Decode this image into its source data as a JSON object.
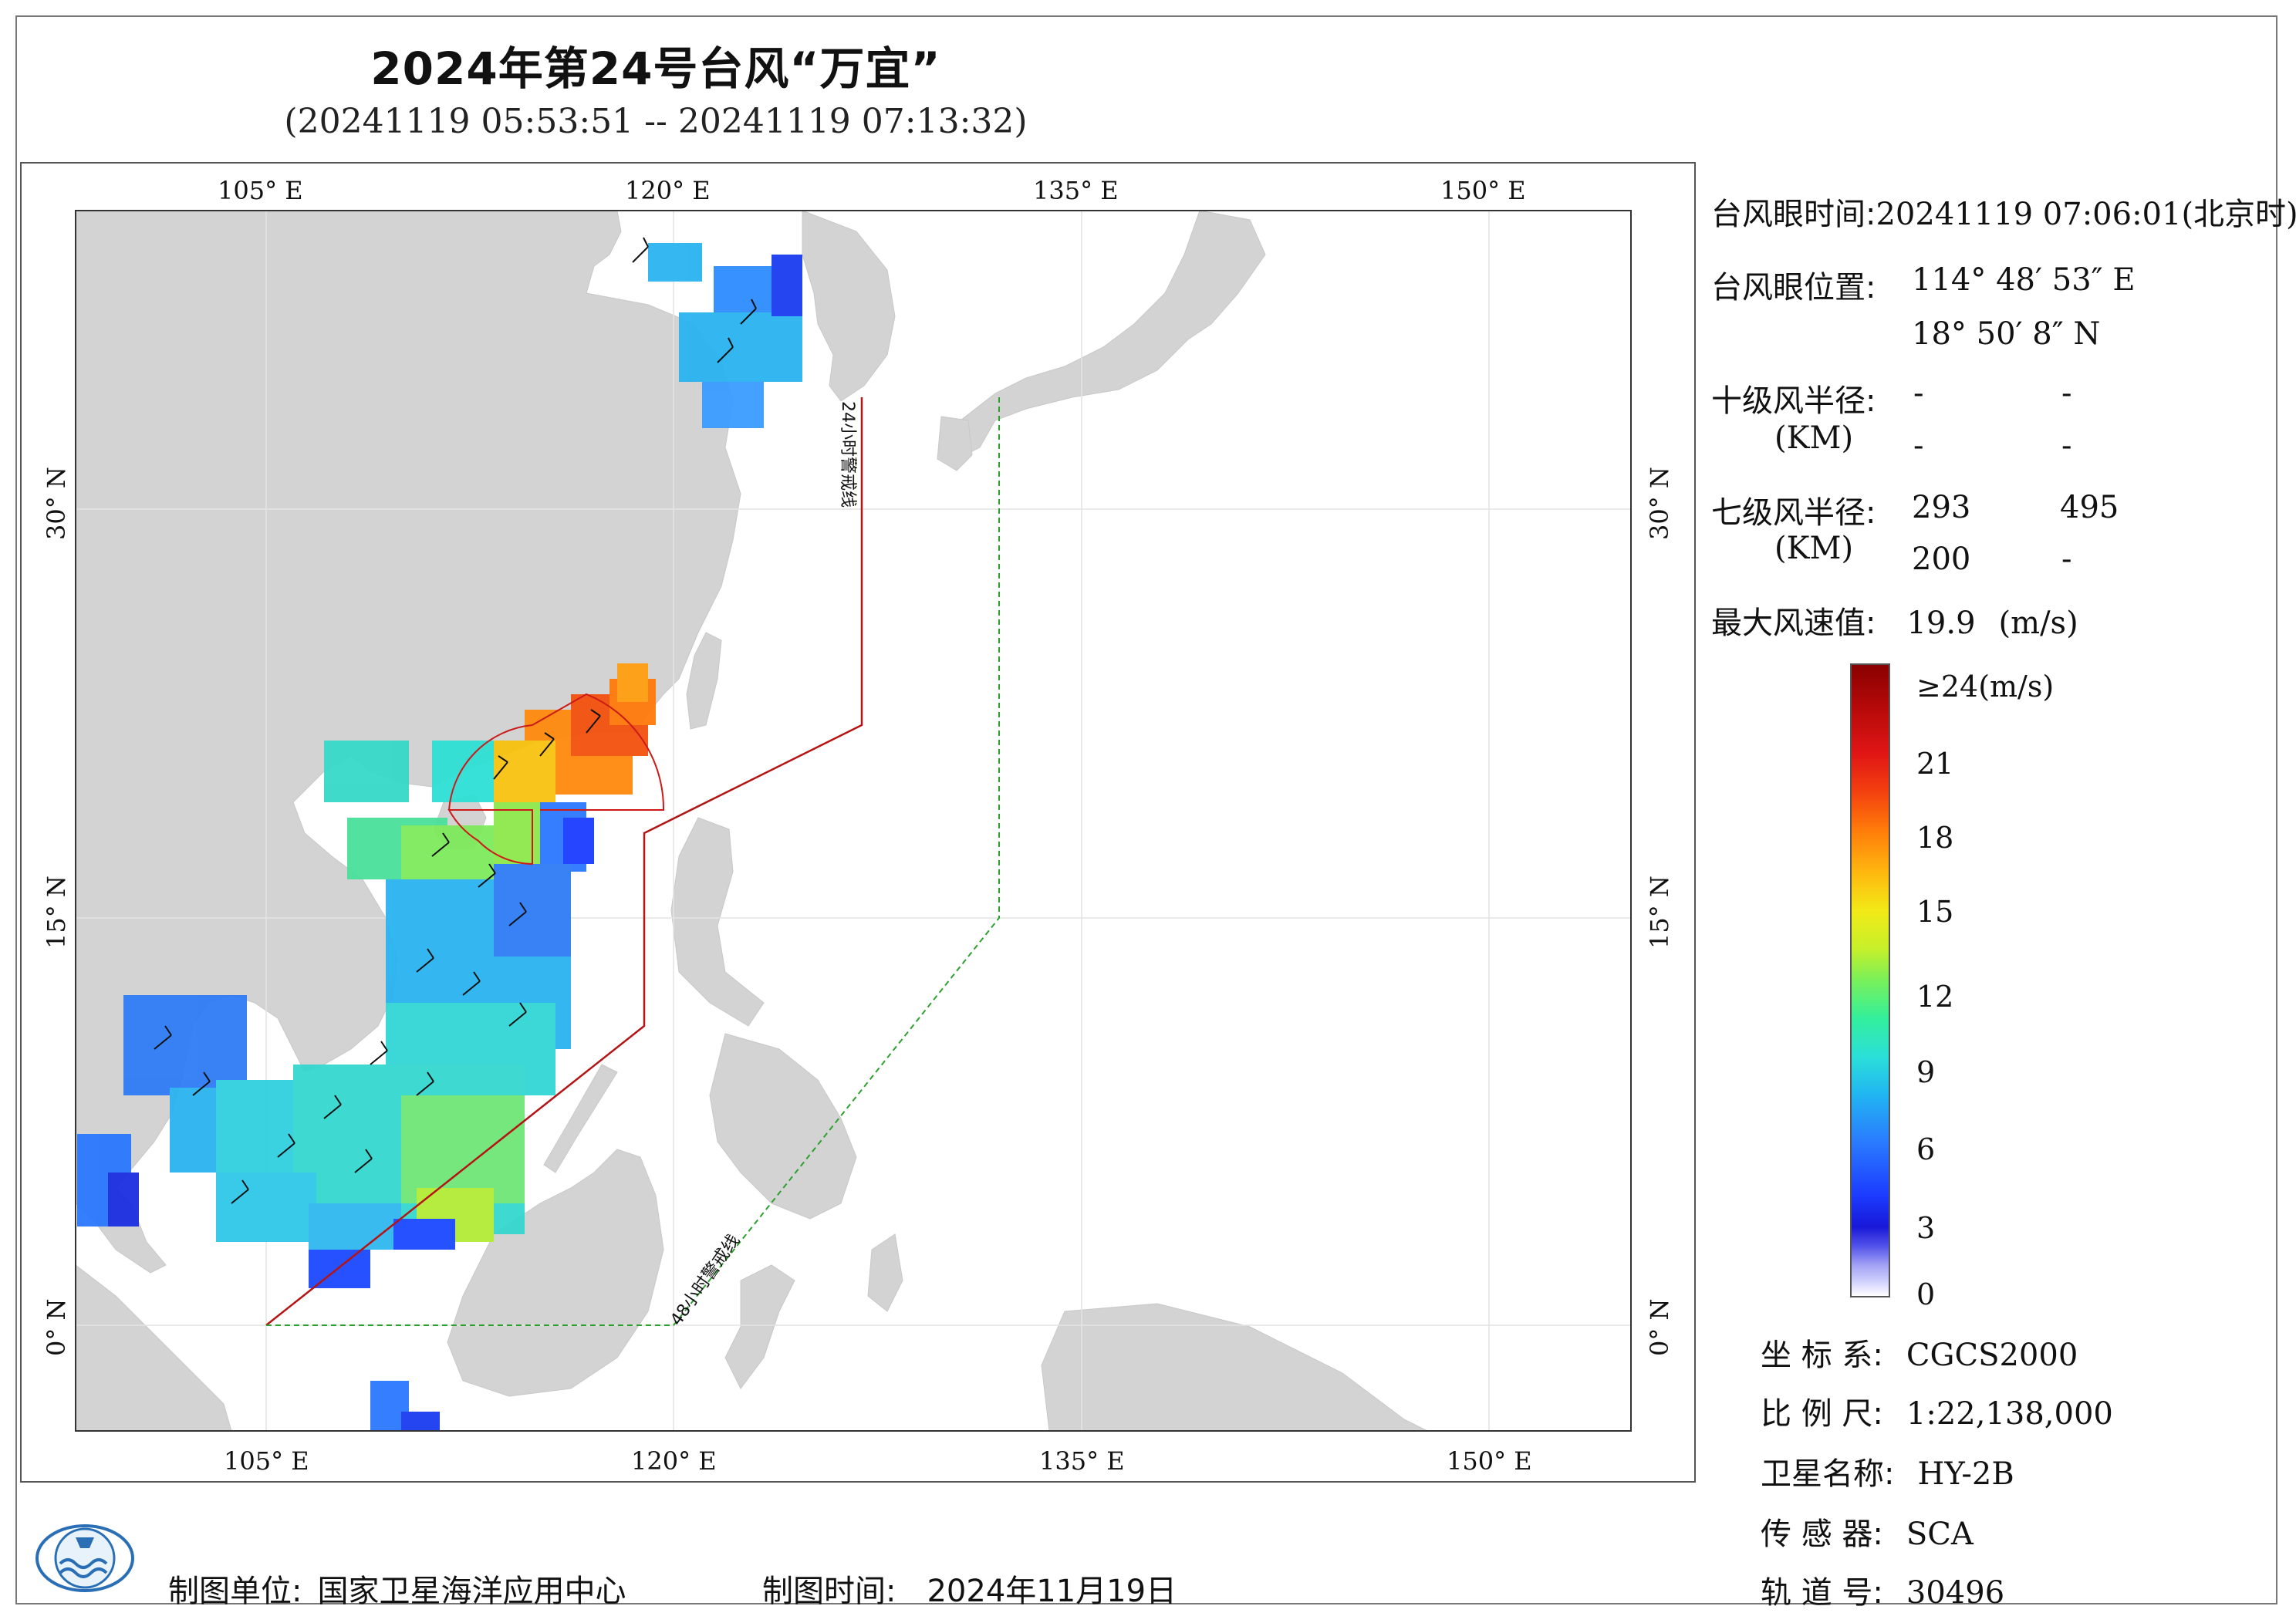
{
  "title": "2024年第24号台风“万宜”",
  "subtitle": "(20241119 05:53:51 -- 20241119 07:13:32)",
  "map": {
    "top_lon_labels": [
      "105° E",
      "120° E",
      "135° E",
      "150° E"
    ],
    "bottom_lon_labels": [
      "105° E",
      "120° E",
      "135° E",
      "150° E"
    ],
    "left_lat_labels": [
      "30° N",
      "15° N",
      "0° N"
    ],
    "right_lat_labels": [
      "30° N",
      "15° N",
      "0° N"
    ],
    "warning_24h_label": "24小时警戒线",
    "warning_48h_label": "48小时警戒线",
    "colors": {
      "land": "#d3d3d3",
      "sea": "#ffffff",
      "line_24h": "#b41414",
      "line_48h": "#2ca02c",
      "wind_radius": "#cc1a1a"
    }
  },
  "info": {
    "eye_time_label": "台风眼时间:",
    "eye_time_value": "20241119 07:06:01(北京时)",
    "eye_pos_label": "台风眼位置:",
    "eye_lon": "114° 48′ 53″ E",
    "eye_lat": "18° 50′ 8″ N",
    "r10_label": "十级风半径:",
    "r10_unit": "(KM)",
    "r10_values": [
      "-",
      "-",
      "-",
      "-"
    ],
    "r7_label": "七级风半径:",
    "r7_unit": "(KM)",
    "r7_values": [
      "293",
      "495",
      "200",
      "-"
    ],
    "max_wind_label": "最大风速值:",
    "max_wind_value": "19.9",
    "max_wind_unit": "(m/s)"
  },
  "colorbar": {
    "top_label": "≥24(m/s)",
    "ticks": [
      "21",
      "18",
      "15",
      "12",
      "9",
      "6",
      "3",
      "0"
    ]
  },
  "meta": {
    "crs_label": "坐 标 系:",
    "crs_value": "CGCS2000",
    "scale_label": "比 例 尺:",
    "scale_value": "1:22,138,000",
    "satellite_label": "卫星名称:",
    "satellite_value": "HY-2B",
    "sensor_label": "传 感 器:",
    "sensor_value": "SCA",
    "orbit_label": "轨 道 号:",
    "orbit_value": "30496"
  },
  "footer": {
    "producer_label": "制图单位:",
    "producer_value": "国家卫星海洋应用中心",
    "date_label": "制图时间:",
    "date_value": "2024年11月19日"
  }
}
